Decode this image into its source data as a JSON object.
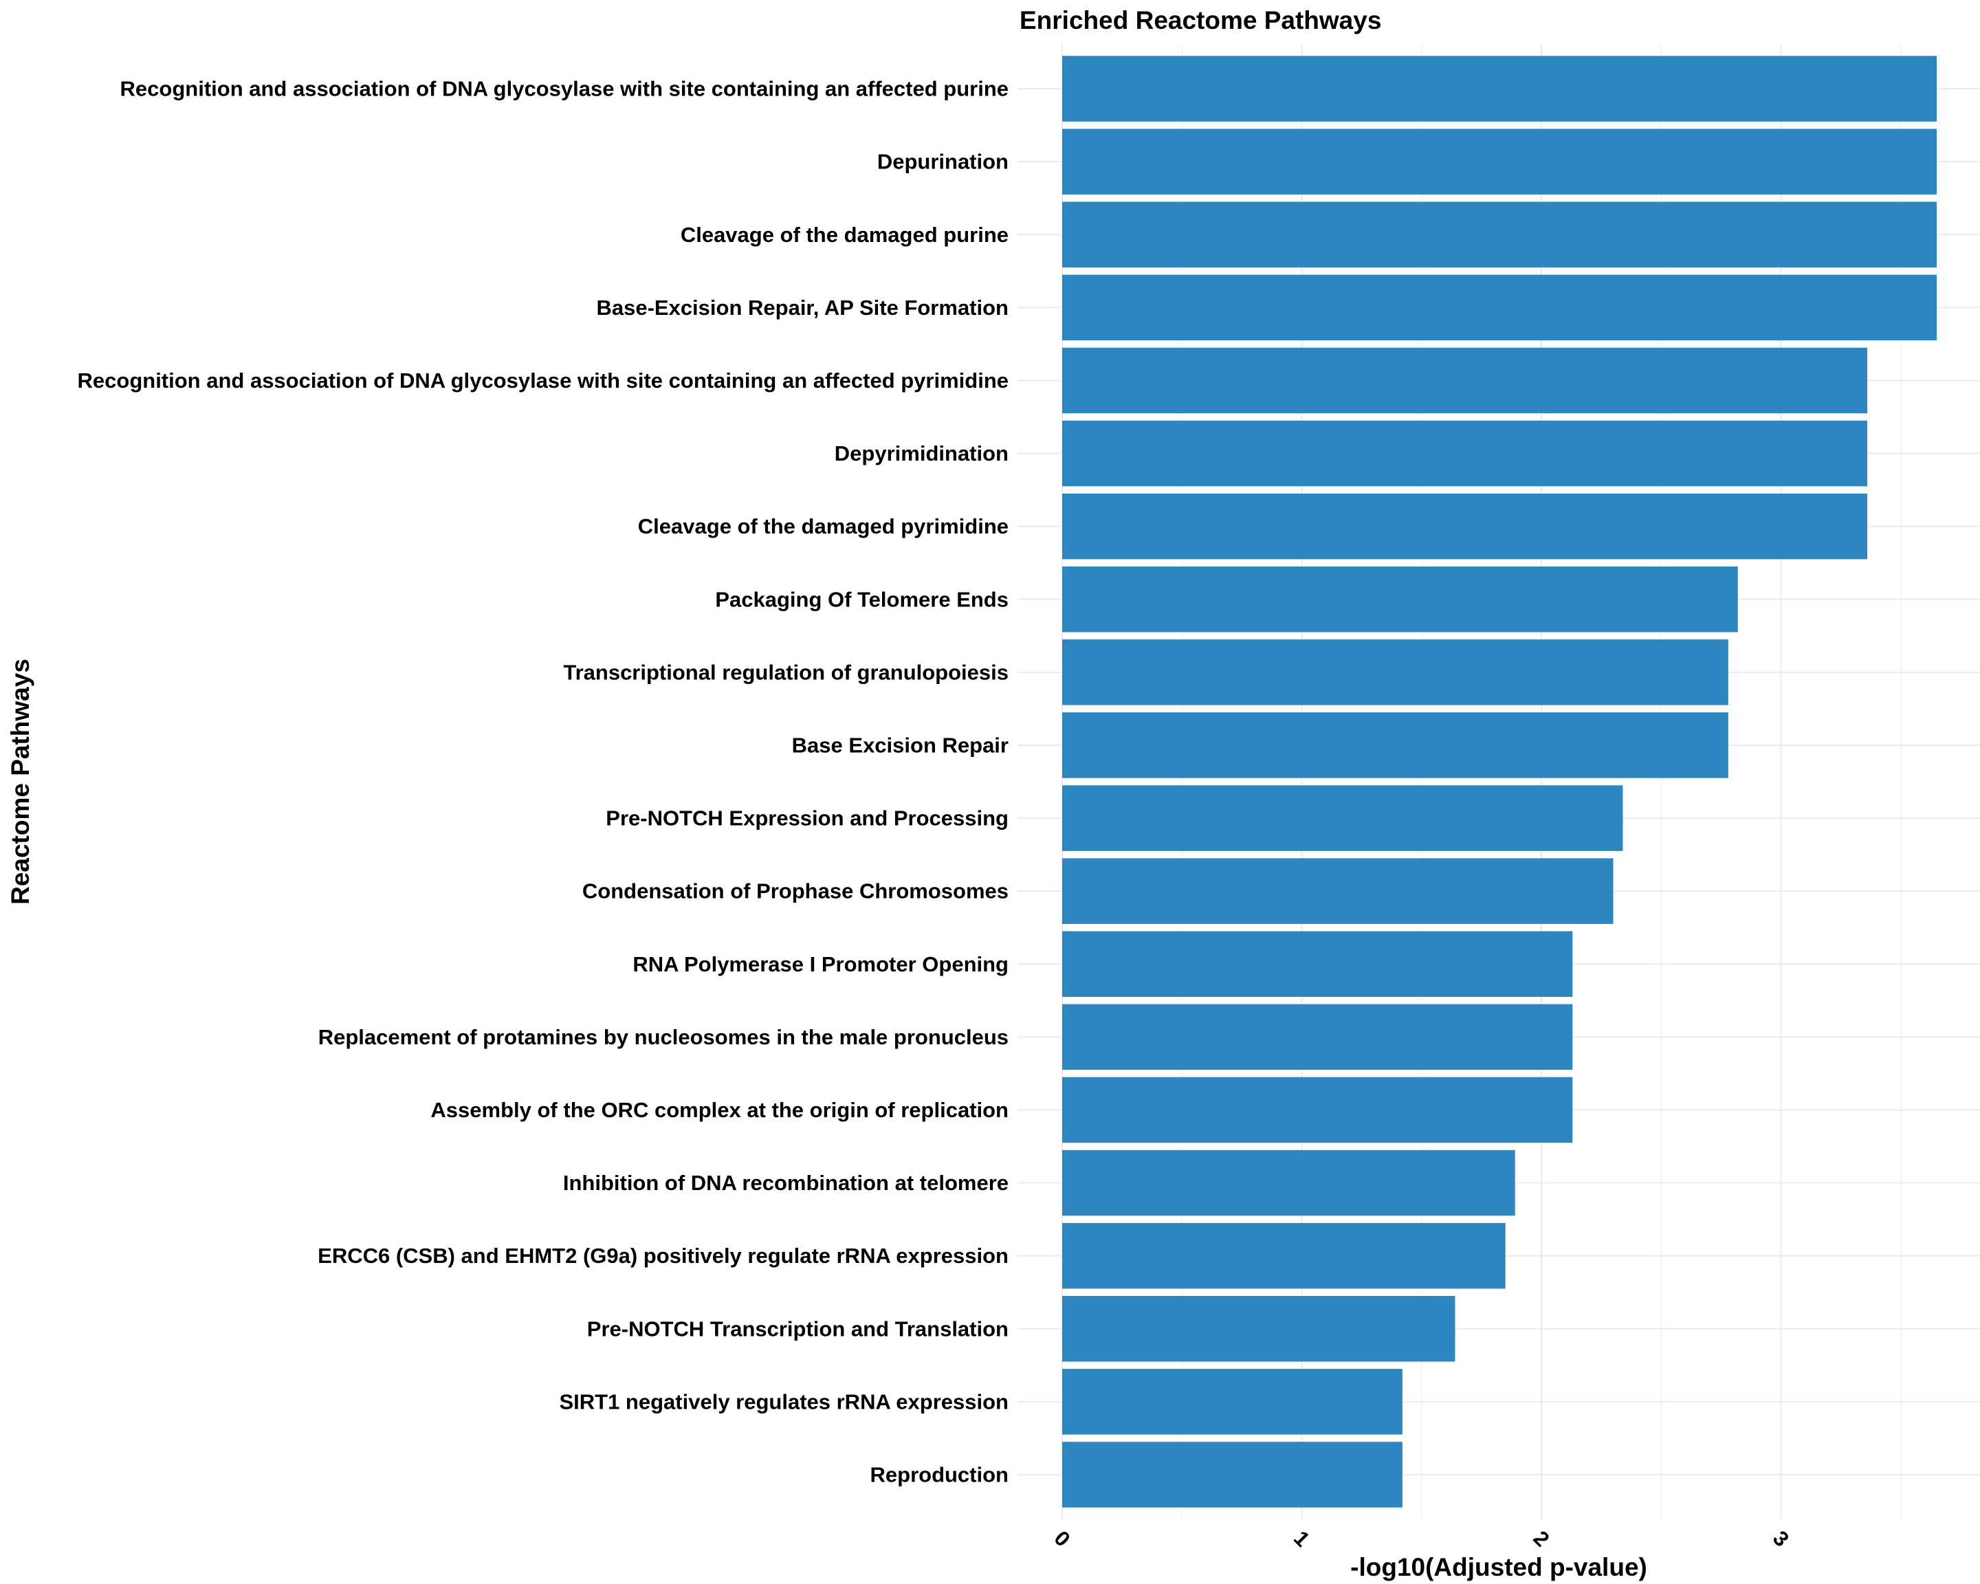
{
  "chart_data": {
    "type": "bar",
    "orientation": "horizontal",
    "title": "Enriched Reactome Pathways",
    "xlabel": "-log10(Adjusted p-value)",
    "ylabel": "Reactome Pathways",
    "xlim": [
      0,
      3.8
    ],
    "xticks": [
      0,
      1,
      2,
      3
    ],
    "grid": true,
    "legend": "none",
    "bar_color": "#2e86c1",
    "categories": [
      "Recognition and association of DNA glycosylase with site containing an affected purine",
      "Depurination",
      "Cleavage of the damaged purine",
      "Base-Excision Repair, AP Site Formation",
      "Recognition and association of DNA glycosylase with site containing an affected pyrimidine",
      "Depyrimidination",
      "Cleavage of the damaged pyrimidine",
      "Packaging Of Telomere Ends",
      "Transcriptional regulation of granulopoiesis",
      "Base Excision Repair",
      "Pre-NOTCH Expression and Processing",
      "Condensation of Prophase Chromosomes",
      "RNA Polymerase I Promoter Opening",
      "Replacement of protamines by nucleosomes in the male pronucleus",
      "Assembly of the ORC complex at the origin of replication",
      "Inhibition of DNA recombination at telomere",
      "ERCC6 (CSB) and EHMT2 (G9a) positively regulate rRNA expression",
      "Pre-NOTCH Transcription and Translation",
      "SIRT1 negatively regulates rRNA expression",
      "Reproduction"
    ],
    "values": [
      3.65,
      3.65,
      3.65,
      3.65,
      3.36,
      3.36,
      3.36,
      2.82,
      2.78,
      2.78,
      2.34,
      2.3,
      2.13,
      2.13,
      2.13,
      1.89,
      1.85,
      1.64,
      1.42,
      1.42
    ]
  }
}
